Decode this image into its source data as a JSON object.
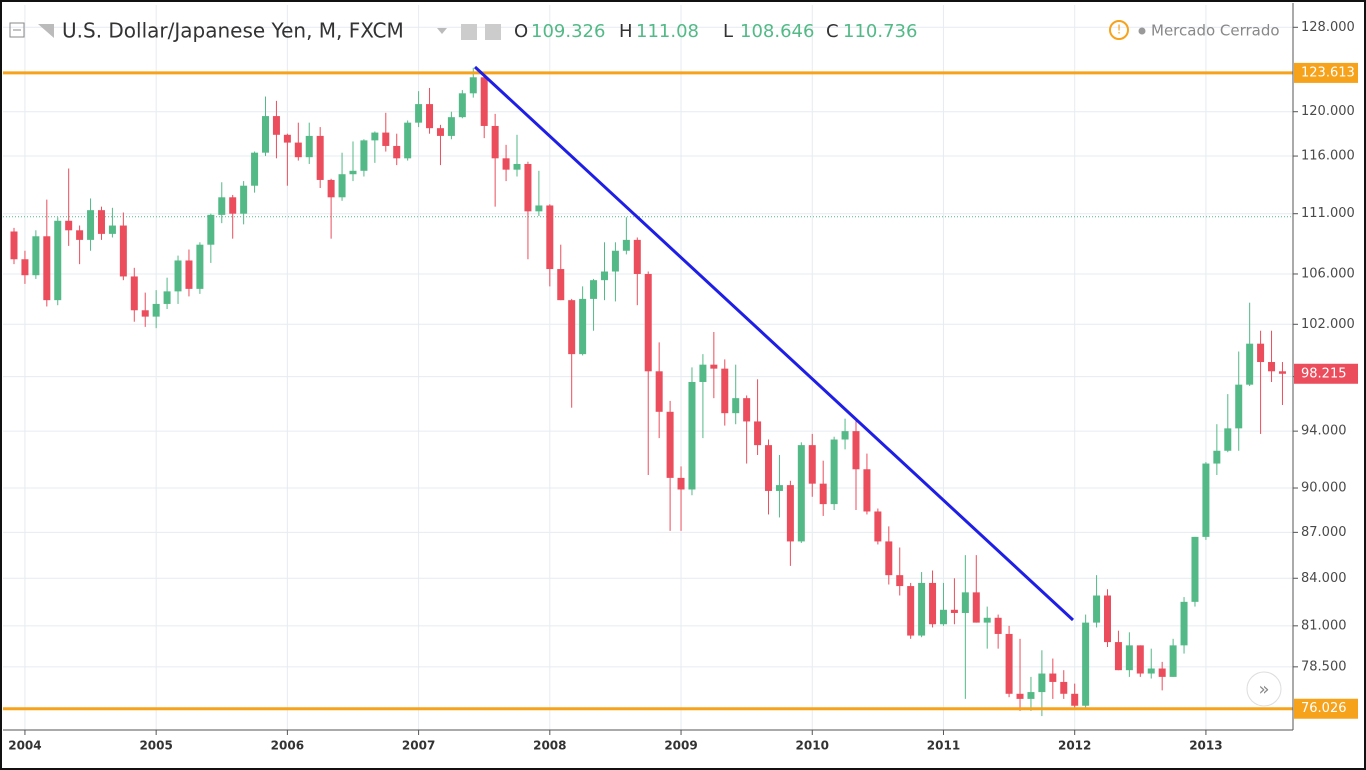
{
  "chart_data": {
    "type": "candlestick",
    "title": "U.S. Dollar/Japanese Yen, M, FXCM",
    "status": "Mercado Cerrado",
    "readout": [
      {
        "label": "O",
        "value": 109.326
      },
      {
        "label": "H",
        "value": 111.08
      },
      {
        "label": "L",
        "value": 108.646
      },
      {
        "label": "C",
        "value": 110.736
      }
    ],
    "categories": [
      null,
      "2004",
      null,
      null,
      null,
      null,
      null,
      null,
      null,
      null,
      null,
      null,
      null,
      "2005",
      null,
      null,
      null,
      null,
      null,
      null,
      null,
      null,
      null,
      null,
      null,
      "2006",
      null,
      null,
      null,
      null,
      null,
      null,
      null,
      null,
      null,
      null,
      null,
      "2007",
      null,
      null,
      null,
      null,
      null,
      null,
      null,
      null,
      null,
      null,
      null,
      "2008",
      null,
      null,
      null,
      null,
      null,
      null,
      null,
      null,
      null,
      null,
      null,
      "2009",
      null,
      null,
      null,
      null,
      null,
      null,
      null,
      null,
      null,
      null,
      null,
      "2010",
      null,
      null,
      null,
      null,
      null,
      null,
      null,
      null,
      null,
      null,
      null,
      "2011",
      null,
      null,
      null,
      null,
      null,
      null,
      null,
      null,
      null,
      null,
      null,
      "2012",
      null,
      null,
      null,
      null,
      null,
      null,
      null,
      null,
      null,
      null,
      null,
      "2013",
      null,
      null,
      null,
      null,
      null,
      null,
      null
    ],
    "open": [
      109.5,
      107.2,
      105.9,
      109.1,
      103.9,
      110.4,
      109.6,
      108.8,
      111.3,
      109.3,
      110.0,
      105.8,
      103.1,
      102.6,
      103.6,
      104.6,
      107.1,
      104.8,
      108.4,
      110.9,
      112.4,
      111.0,
      113.4,
      116.3,
      119.6,
      117.9,
      117.2,
      115.9,
      117.8,
      113.9,
      112.4,
      114.4,
      114.7,
      117.4,
      118.1,
      116.9,
      115.8,
      119.0,
      120.7,
      118.5,
      117.8,
      119.5,
      121.7,
      123.2,
      118.7,
      115.8,
      114.8,
      115.3,
      111.2,
      111.7,
      106.4,
      103.9,
      99.7,
      104.0,
      105.5,
      106.2,
      107.9,
      108.8,
      106.0,
      98.4,
      95.4,
      90.7,
      89.9,
      97.6,
      98.9,
      98.6,
      95.3,
      96.4,
      94.7,
      93.0,
      89.8,
      90.2,
      86.4,
      93.0,
      90.3,
      88.9,
      93.4,
      94.0,
      91.3,
      88.4,
      86.4,
      84.2,
      83.5,
      80.4,
      83.7,
      81.1,
      82.0,
      81.8,
      83.1,
      81.2,
      81.5,
      80.5,
      76.9,
      76.6,
      77.0,
      78.1,
      77.6,
      76.9,
      76.2,
      81.2,
      82.9,
      80.0,
      78.3,
      79.8,
      78.1,
      78.4,
      77.9,
      79.8,
      82.5,
      86.7,
      91.7,
      92.6,
      94.2,
      97.4,
      100.5,
      99.1,
      98.4
    ],
    "high": [
      109.8,
      107.9,
      109.6,
      112.2,
      110.7,
      114.9,
      110.0,
      112.3,
      111.6,
      111.5,
      111.1,
      106.5,
      104.5,
      104.7,
      105.7,
      107.5,
      108.0,
      108.6,
      111.0,
      113.7,
      112.6,
      113.8,
      116.4,
      121.4,
      121.0,
      118.0,
      119.0,
      119.0,
      118.6,
      114.0,
      116.3,
      117.3,
      117.5,
      118.2,
      119.9,
      118.0,
      119.2,
      121.9,
      122.2,
      118.8,
      120.0,
      122.0,
      124.1,
      123.4,
      119.8,
      117.0,
      117.9,
      115.5,
      114.7,
      111.8,
      108.4,
      104.0,
      105.0,
      105.6,
      108.6,
      108.6,
      110.7,
      109.0,
      106.2,
      100.6,
      96.2,
      91.5,
      98.7,
      99.7,
      101.4,
      99.3,
      98.9,
      96.6,
      97.8,
      93.4,
      92.3,
      90.5,
      93.2,
      93.8,
      91.9,
      93.6,
      94.9,
      94.8,
      92.4,
      88.6,
      87.4,
      86.0,
      83.7,
      84.4,
      84.5,
      83.7,
      84.0,
      85.5,
      85.5,
      82.2,
      81.7,
      81.0,
      80.2,
      77.9,
      79.5,
      79.0,
      78.3,
      77.5,
      81.7,
      84.2,
      83.3,
      80.7,
      80.6,
      79.8,
      79.6,
      78.8,
      80.2,
      82.8,
      86.7,
      91.8,
      94.5,
      96.7,
      99.9,
      103.7,
      101.5,
      101.5,
      99.1
    ],
    "low": [
      106.8,
      105.2,
      105.6,
      103.4,
      103.5,
      108.3,
      106.8,
      107.9,
      108.8,
      109.0,
      105.5,
      102.2,
      101.8,
      101.7,
      103.2,
      103.6,
      104.2,
      104.4,
      106.9,
      110.2,
      108.9,
      110.1,
      112.8,
      116.0,
      115.8,
      113.4,
      115.6,
      115.3,
      113.2,
      108.9,
      112.1,
      113.8,
      114.2,
      115.4,
      116.4,
      115.2,
      115.6,
      118.6,
      118.0,
      115.2,
      117.5,
      119.4,
      121.3,
      117.6,
      111.6,
      113.8,
      114.2,
      107.2,
      110.8,
      105.0,
      103.9,
      95.7,
      99.6,
      101.5,
      103.9,
      103.8,
      107.6,
      103.5,
      90.9,
      93.5,
      87.1,
      87.1,
      89.5,
      93.5,
      96.4,
      94.4,
      94.5,
      91.7,
      92.3,
      88.2,
      88.0,
      84.8,
      86.3,
      89.4,
      88.1,
      88.5,
      92.7,
      88.5,
      88.2,
      86.2,
      83.6,
      82.9,
      80.2,
      80.3,
      80.9,
      81.0,
      81.1,
      76.6,
      81.2,
      79.6,
      79.6,
      76.7,
      75.9,
      75.9,
      75.6,
      76.6,
      76.6,
      76.0,
      76.1,
      80.9,
      79.7,
      78.3,
      77.9,
      77.9,
      77.8,
      77.1,
      77.9,
      79.3,
      82.2,
      86.5,
      90.9,
      92.5,
      92.6,
      97.3,
      93.8,
      97.6,
      95.9
    ],
    "close": [
      107.2,
      105.9,
      109.1,
      103.9,
      110.4,
      109.6,
      108.8,
      111.3,
      109.3,
      110.0,
      105.8,
      103.1,
      102.6,
      103.6,
      104.6,
      107.1,
      104.8,
      108.4,
      110.9,
      112.4,
      111.0,
      113.4,
      116.3,
      119.6,
      117.9,
      117.2,
      115.9,
      117.8,
      113.9,
      112.4,
      114.4,
      114.7,
      117.4,
      118.1,
      116.9,
      115.8,
      119.0,
      120.7,
      118.5,
      117.8,
      119.5,
      121.7,
      123.2,
      118.7,
      115.8,
      114.8,
      115.3,
      111.2,
      111.7,
      106.4,
      103.9,
      99.7,
      104.0,
      105.5,
      106.2,
      107.9,
      108.8,
      106.0,
      98.4,
      95.4,
      90.7,
      89.9,
      97.6,
      98.9,
      98.6,
      95.3,
      96.4,
      94.7,
      93.0,
      89.8,
      90.2,
      86.4,
      93.0,
      90.3,
      88.9,
      93.4,
      94.0,
      91.3,
      88.4,
      86.4,
      84.2,
      83.5,
      80.4,
      83.7,
      81.1,
      82.0,
      81.8,
      83.1,
      81.2,
      81.5,
      80.5,
      76.9,
      76.6,
      77.0,
      78.1,
      77.6,
      76.9,
      76.2,
      81.2,
      82.9,
      80.0,
      78.3,
      79.8,
      78.1,
      78.4,
      77.9,
      79.8,
      82.5,
      86.7,
      91.7,
      92.6,
      94.2,
      97.4,
      100.5,
      99.1,
      98.4,
      98.215
    ],
    "up_color": "#53b987",
    "down_color": "#eb4d5c",
    "ylim": [
      74.8,
      130.2
    ],
    "log_scale": true,
    "grid": true,
    "yticks": [
      {
        "value": 128,
        "label": "128.000"
      },
      {
        "value": 120,
        "label": "120.000"
      },
      {
        "value": 116,
        "label": "116.000"
      },
      {
        "value": 111,
        "label": "111.000"
      },
      {
        "value": 106,
        "label": "106.000"
      },
      {
        "value": 102,
        "label": "102.000"
      },
      {
        "value": 98,
        "label": "98.000"
      },
      {
        "value": 94,
        "label": "94.000"
      },
      {
        "value": 90,
        "label": "90.000"
      },
      {
        "value": 87,
        "label": "87.000"
      },
      {
        "value": 84,
        "label": "84.000"
      },
      {
        "value": 81,
        "label": "81.000"
      },
      {
        "value": 78.5,
        "label": "78.500"
      }
    ],
    "hlines": [
      {
        "value": 123.613,
        "color": "#f7a21b"
      },
      {
        "value": 76.026,
        "color": "#f7a21b"
      }
    ]
  }
}
